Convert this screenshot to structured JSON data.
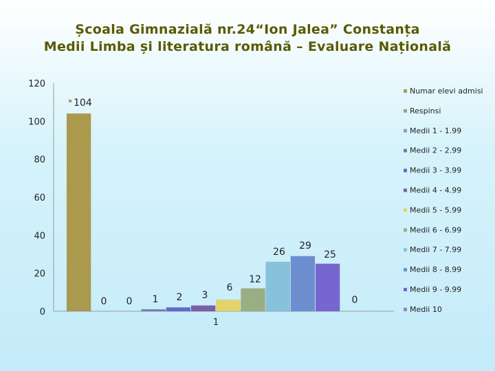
{
  "title_line1": "Școala Gimnazială nr.24“Ion Jalea” Constanța",
  "title_line2": "Medii Limba și literatura română – Evaluare Națională",
  "chart_data": {
    "type": "bar",
    "categories": [
      "1"
    ],
    "ylim": [
      0,
      120
    ],
    "yticks": [
      0,
      20,
      40,
      60,
      80,
      100,
      120
    ],
    "xtick_labels": [
      "1"
    ],
    "grid": false,
    "legend_position": "right",
    "series": [
      {
        "name": "Numar elevi admisi",
        "values": [
          104
        ],
        "color": "#ab9a4e"
      },
      {
        "name": "Respinsi",
        "values": [
          0
        ],
        "color": "#a0a080"
      },
      {
        "name": "Medii 1 - 1.99",
        "values": [
          0
        ],
        "color": "#8ea0c0"
      },
      {
        "name": "Medii 2 - 2.99",
        "values": [
          1
        ],
        "color": "#6c7fb6"
      },
      {
        "name": "Medii 3 - 3.99",
        "values": [
          2
        ],
        "color": "#5b6dc9"
      },
      {
        "name": "Medii 4 - 4.99",
        "values": [
          3
        ],
        "color": "#7a5ea8"
      },
      {
        "name": "Medii 5 - 5.99",
        "values": [
          6
        ],
        "color": "#e3d36a"
      },
      {
        "name": "Medii 6 - 6.99",
        "values": [
          12
        ],
        "color": "#9aae84"
      },
      {
        "name": "Medii 7 - 7.99",
        "values": [
          26
        ],
        "color": "#86c3da"
      },
      {
        "name": "Medii 8 - 8.99",
        "values": [
          29
        ],
        "color": "#6d8fd2"
      },
      {
        "name": "Medii 9 - 9.99",
        "values": [
          25
        ],
        "color": "#7766cf"
      },
      {
        "name": "Medii 10",
        "values": [
          0
        ],
        "color": "#9a7fc0"
      }
    ],
    "data_labels": [
      "104",
      "0",
      "0",
      "1",
      "2",
      "3",
      "6",
      "12",
      "26",
      "29",
      "25",
      "0"
    ]
  }
}
